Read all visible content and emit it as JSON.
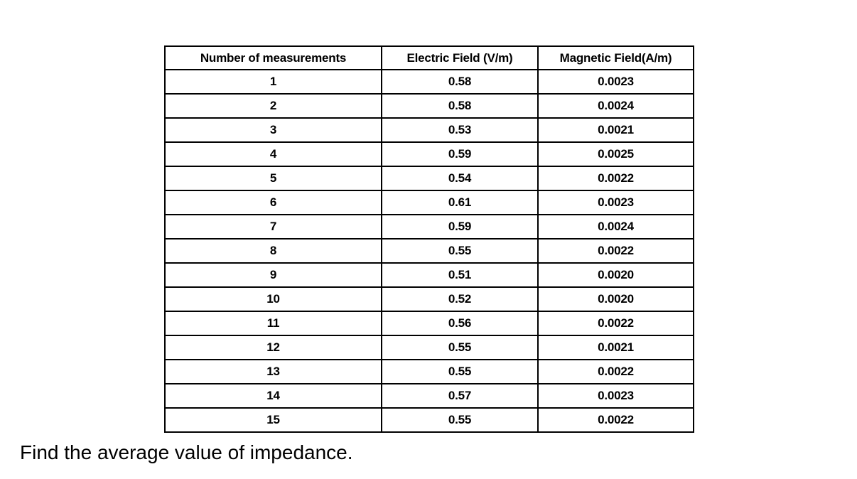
{
  "table": {
    "headers": [
      "Number of measurements",
      "Electric Field (V/m)",
      "Magnetic Field(A/m)"
    ],
    "rows": [
      [
        "1",
        "0.58",
        "0.0023"
      ],
      [
        "2",
        "0.58",
        "0.0024"
      ],
      [
        "3",
        "0.53",
        "0.0021"
      ],
      [
        "4",
        "0.59",
        "0.0025"
      ],
      [
        "5",
        "0.54",
        "0.0022"
      ],
      [
        "6",
        "0.61",
        "0.0023"
      ],
      [
        "7",
        "0.59",
        "0.0024"
      ],
      [
        "8",
        "0.55",
        "0.0022"
      ],
      [
        "9",
        "0.51",
        "0.0020"
      ],
      [
        "10",
        "0.52",
        "0.0020"
      ],
      [
        "11",
        "0.56",
        "0.0022"
      ],
      [
        "12",
        "0.55",
        "0.0021"
      ],
      [
        "13",
        "0.55",
        "0.0022"
      ],
      [
        "14",
        "0.57",
        "0.0023"
      ],
      [
        "15",
        "0.55",
        "0.0022"
      ]
    ]
  },
  "question": "Find the average value of impedance.",
  "colors": {
    "border": "#000000",
    "text": "#000000",
    "background": "#ffffff"
  }
}
